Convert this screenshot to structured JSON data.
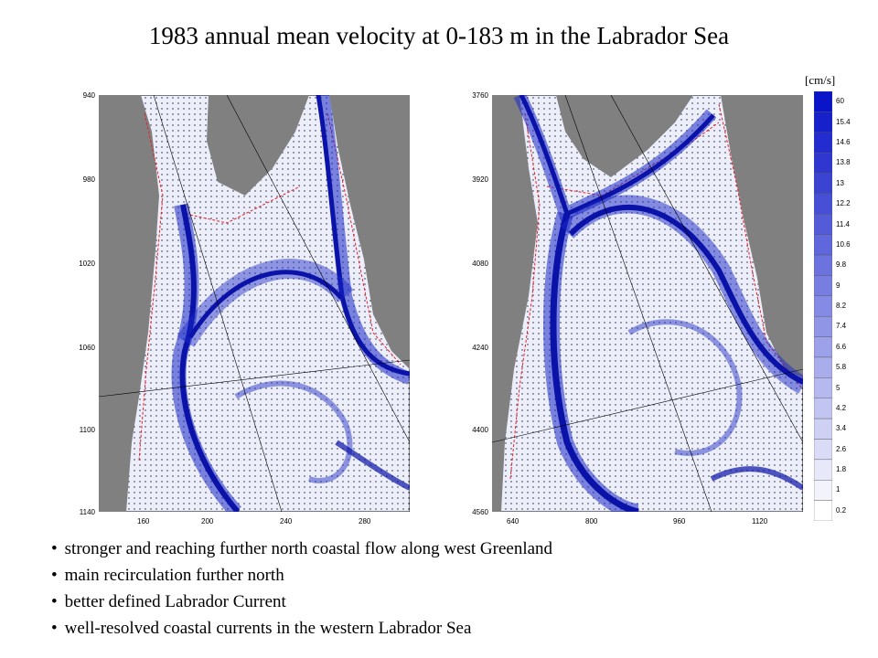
{
  "title": "1983 annual mean velocity at 0-183 m in the Labrador Sea",
  "unit_label": "[cm/s]",
  "colors": {
    "land": "#808080",
    "ocean_light": "#e8eaf8",
    "current_dark": "#0a12a8",
    "isobath": "#e8202a"
  },
  "maps": [
    {
      "name": "left-map",
      "y_ticks": [
        "940",
        "980",
        "1020",
        "1060",
        "1100",
        "1140"
      ],
      "x_ticks": [
        "160",
        "200",
        "240",
        "280"
      ]
    },
    {
      "name": "right-map",
      "y_ticks": [
        "3760",
        "3920",
        "4080",
        "4240",
        "4400",
        "4560"
      ],
      "x_ticks": [
        "640",
        "800",
        "960",
        "1120"
      ]
    }
  ],
  "colorbar_labels": [
    "60",
    "15.4",
    "14.6",
    "13.8",
    "13",
    "12.2",
    "11.4",
    "10.6",
    "9.8",
    "9",
    "8.2",
    "7.4",
    "6.6",
    "5.8",
    "5",
    "4.2",
    "3.4",
    "2.6",
    "1.8",
    "1",
    "0.2"
  ],
  "bullets": [
    "stronger and reaching further north coastal flow along west Greenland",
    "main recirculation further north",
    "better defined Labrador Current",
    "well-resolved coastal currents in the western Labrador Sea"
  ]
}
